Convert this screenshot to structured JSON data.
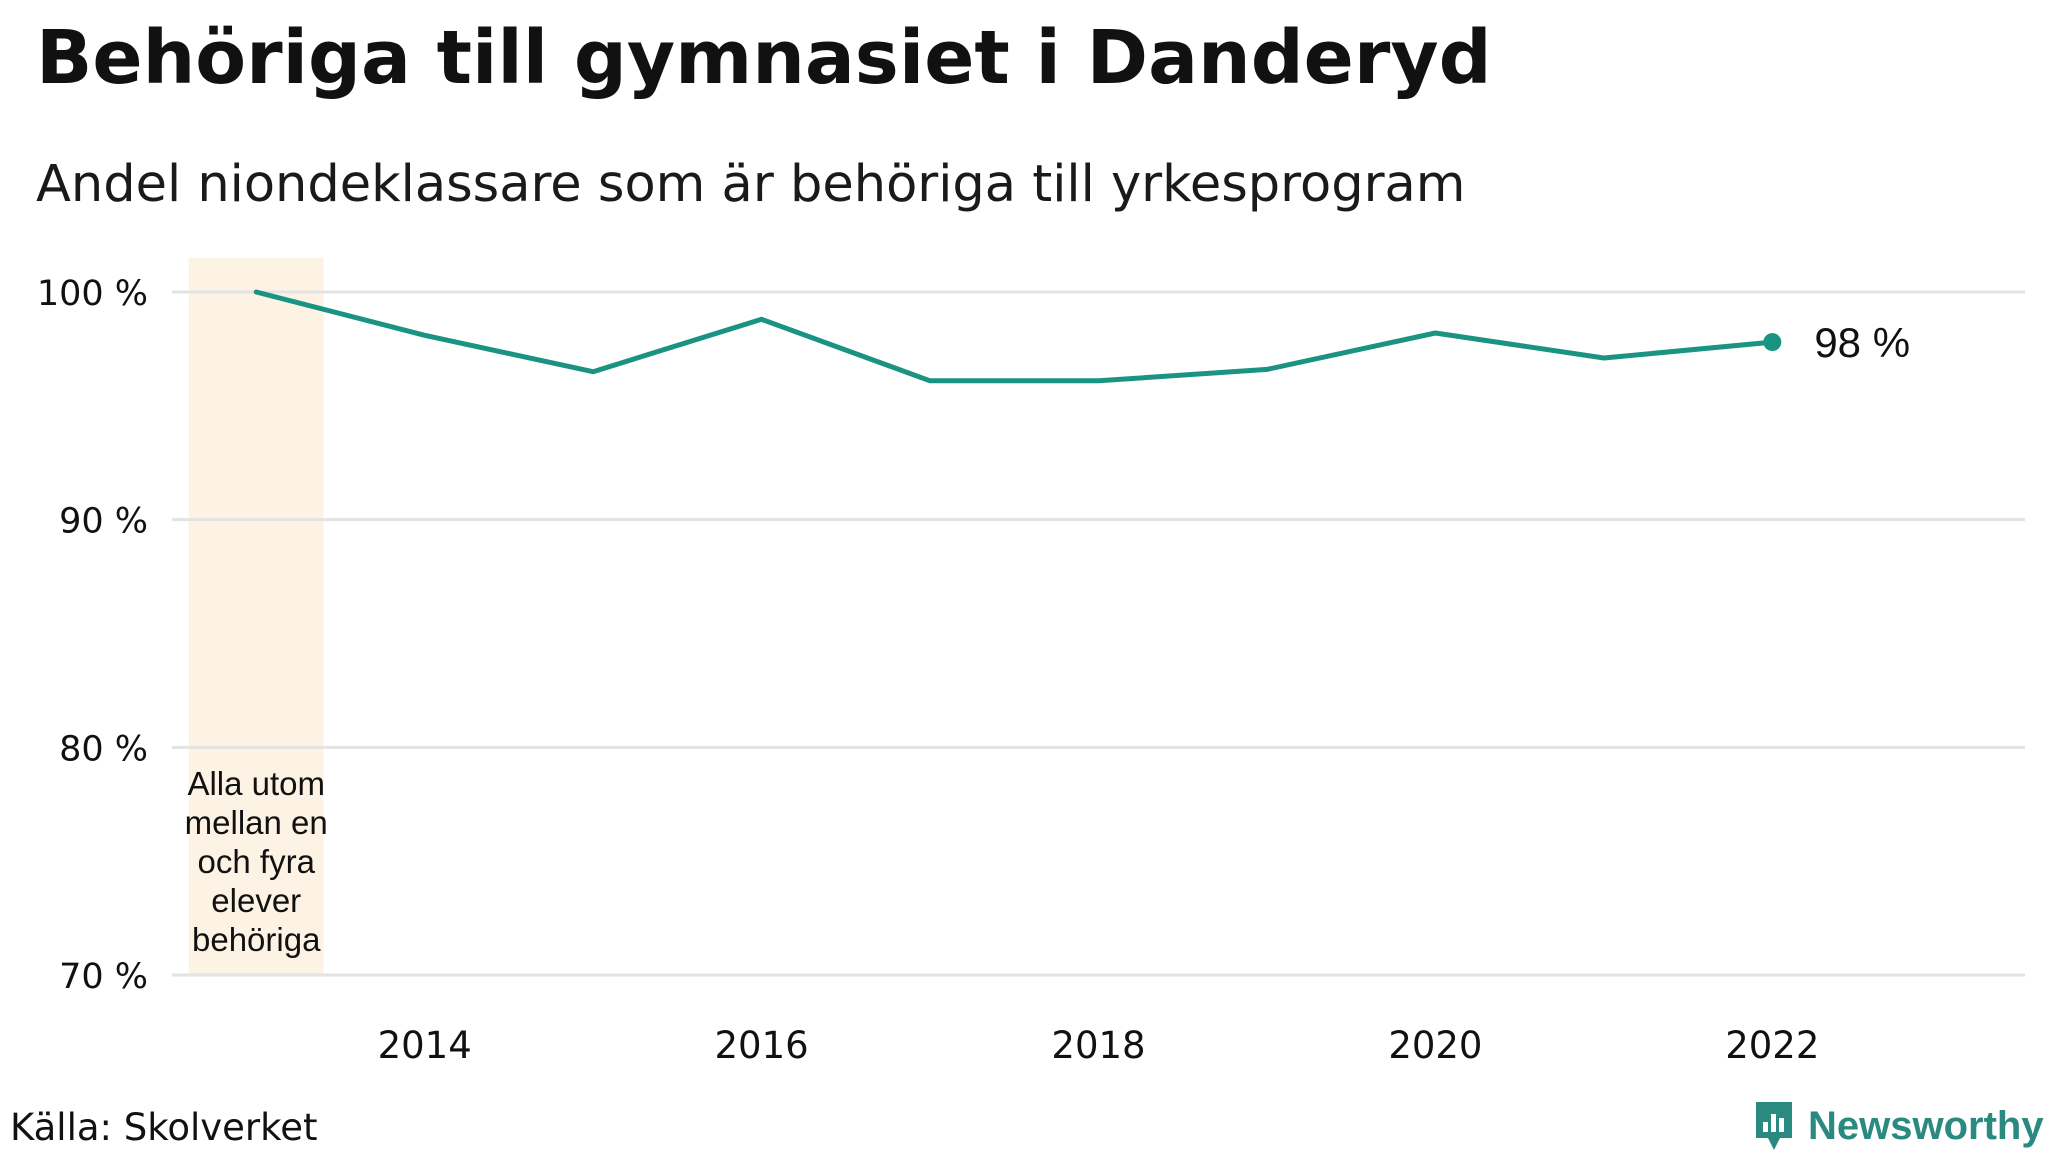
{
  "header": {
    "title": "Behöriga till gymnasiet i Danderyd",
    "subtitle": "Andel niondeklassare som är behöriga till yrkesprogram"
  },
  "footer": {
    "source": "Källa: Skolverket",
    "brand": "Newsworthy"
  },
  "colors": {
    "line": "#1a9383",
    "grid": "#e3e3e3",
    "highlight": "#fdf3e4",
    "text": "#111111",
    "brand": "#2a8a80"
  },
  "chart_data": {
    "type": "line",
    "title": "Behöriga till gymnasiet i Danderyd",
    "subtitle": "Andel niondeklassare som är behöriga till yrkesprogram",
    "xlabel": "",
    "ylabel": "",
    "x": [
      2013,
      2014,
      2015,
      2016,
      2017,
      2018,
      2019,
      2020,
      2021,
      2022
    ],
    "series": [
      {
        "values": [
          100,
          98.1,
          96.5,
          98.8,
          96.1,
          96.1,
          96.6,
          98.2,
          97.1,
          97.8
        ]
      }
    ],
    "xlim": [
      2012.5,
      2023.5
    ],
    "ylim": [
      70,
      100
    ],
    "y_ticks": [
      100,
      90,
      80,
      70
    ],
    "y_tick_labels": [
      "100 %",
      "90 %",
      "80 %",
      "70 %"
    ],
    "x_ticks": [
      2014,
      2016,
      2018,
      2020,
      2022
    ],
    "x_tick_labels": [
      "2014",
      "2016",
      "2018",
      "2020",
      "2022"
    ],
    "grid": true,
    "end_label": "98  %",
    "annotation": {
      "x_range": [
        2012.6,
        2013.4
      ],
      "lines": [
        "Alla utom",
        "mellan en",
        "och fyra",
        "elever",
        "behöriga"
      ]
    }
  }
}
